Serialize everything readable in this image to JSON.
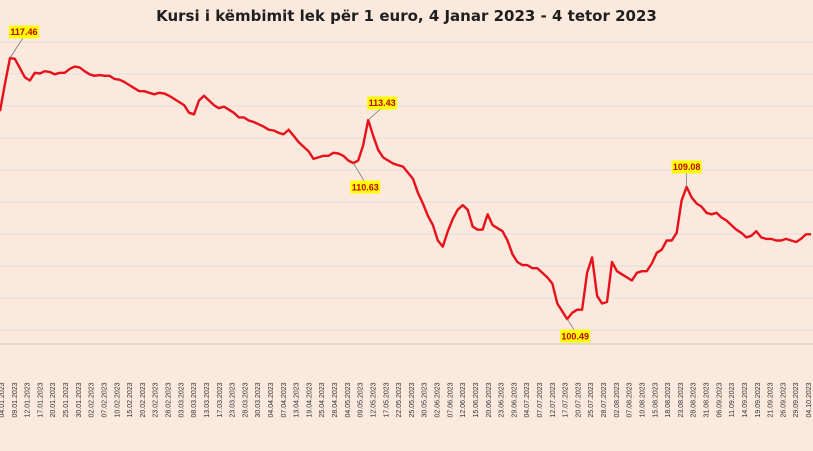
{
  "chart_data": {
    "type": "line",
    "title": "Kursi i këmbimit lek për 1 euro, 4 Janar 2023  - 4 tetor 2023",
    "xlabel": "",
    "ylabel": "",
    "ylim": [
      99.0,
      118.5
    ],
    "grid": true,
    "legend": "none",
    "colors": {
      "line": "#e8101a",
      "background": "#fbe9dd",
      "grid": "#dedede",
      "label_box": "#ffff00",
      "label_text": "#c00000"
    },
    "x_tick_labels": [
      "04.01.2023",
      "09.01.2023",
      "12.01.2023",
      "17.01.2023",
      "20.01.2023",
      "25.01.2023",
      "30.01.2023",
      "02.02.2023",
      "07.02.2023",
      "10.02.2023",
      "15.02.2023",
      "20.02.2023",
      "23.02.2023",
      "28.02.2023",
      "03.03.2023",
      "08.03.2023",
      "13.03.2023",
      "17.03.2023",
      "23.03.2023",
      "28.03.2023",
      "30.03.2023",
      "04.04.2023",
      "07.04.2023",
      "13.04.2023",
      "19.04.2023",
      "25.04.2023",
      "28.04.2023",
      "04.05.2023",
      "09.05.2023",
      "12.05.2023",
      "17.05.2023",
      "22.05.2023",
      "25.05.2023",
      "30.05.2023",
      "02.06.2023",
      "07.06.2023",
      "12.06.2023",
      "15.06.2023",
      "20.06.2023",
      "23.06.2023",
      "29.06.2023",
      "04.07.2023",
      "07.07.2023",
      "12.07.2023",
      "17.07.2023",
      "20.07.2023",
      "25.07.2023",
      "28.07.2023",
      "02.08.2023",
      "07.08.2023",
      "10.08.2023",
      "15.08.2023",
      "18.08.2023",
      "23.08.2023",
      "28.08.2023",
      "31.08.2023",
      "06.09.2023",
      "11.09.2023",
      "14.09.2023",
      "19.09.2023",
      "21.09.2023",
      "26.09.2023",
      "29.09.2023",
      "04.10.2023"
    ],
    "series": [
      {
        "values": [
          114.0,
          115.8,
          117.46,
          117.4,
          116.8,
          116.2,
          116.0,
          116.5,
          116.45,
          116.6,
          116.55,
          116.4,
          116.5,
          116.5,
          116.75,
          116.9,
          116.85,
          116.6,
          116.4,
          116.3,
          116.35,
          116.3,
          116.3,
          116.1,
          116.05,
          115.9,
          115.7,
          115.5,
          115.3,
          115.3,
          115.2,
          115.1,
          115.2,
          115.15,
          115.0,
          114.8,
          114.6,
          114.4,
          113.9,
          113.8,
          114.7,
          115.0,
          114.7,
          114.4,
          114.2,
          114.3,
          114.1,
          113.9,
          113.6,
          113.6,
          113.4,
          113.3,
          113.15,
          113.0,
          112.8,
          112.75,
          112.6,
          112.5,
          112.8,
          112.4,
          112.0,
          111.7,
          111.4,
          110.9,
          111.0,
          111.1,
          111.1,
          111.3,
          111.25,
          111.1,
          110.8,
          110.63,
          110.8,
          111.8,
          113.43,
          112.4,
          111.5,
          111.0,
          110.8,
          110.6,
          110.5,
          110.4,
          110.0,
          109.6,
          108.7,
          108.0,
          107.2,
          106.6,
          105.6,
          105.2,
          106.2,
          107.0,
          107.6,
          107.9,
          107.6,
          106.5,
          106.3,
          106.3,
          107.3,
          106.6,
          106.4,
          106.2,
          105.6,
          104.7,
          104.2,
          104.0,
          104.0,
          103.8,
          103.8,
          103.5,
          103.2,
          102.8,
          101.5,
          101.0,
          100.49,
          100.9,
          101.1,
          101.1,
          103.5,
          104.5,
          102.0,
          101.5,
          101.6,
          104.2,
          103.6,
          103.4,
          103.2,
          103.0,
          103.5,
          103.6,
          103.6,
          104.1,
          104.8,
          105.0,
          105.6,
          105.6,
          106.1,
          108.2,
          109.08,
          108.4,
          108.0,
          107.8,
          107.4,
          107.3,
          107.4,
          107.1,
          106.9,
          106.6,
          106.3,
          106.1,
          105.8,
          105.9,
          106.2,
          105.8,
          105.7,
          105.7,
          105.6,
          105.6,
          105.7,
          105.6,
          105.5,
          105.7,
          106.0,
          106.0
        ]
      }
    ],
    "annotations": [
      {
        "label": "117.46",
        "index": 2
      },
      {
        "label": "113.43",
        "index": 74
      },
      {
        "label": "110.63",
        "index": 71
      },
      {
        "label": "100.49",
        "index": 114
      },
      {
        "label": "109.08",
        "index": 138
      }
    ]
  }
}
